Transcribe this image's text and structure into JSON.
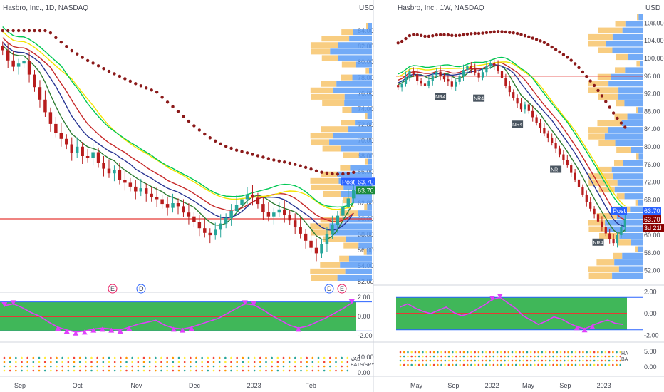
{
  "chart_data": [
    {
      "type": "candlestick",
      "title": "Hasbro, Inc., 1D, NASDAQ",
      "currency": "USD",
      "ylim": [
        52,
        85
      ],
      "y_ticks": [
        "84.00",
        "82.00",
        "80.00",
        "78.00",
        "76.00",
        "74.00",
        "72.00",
        "70.00",
        "68.00",
        "66.00",
        "64.00",
        "62.00",
        "60.00",
        "58.00",
        "56.00",
        "54.00",
        "52.00"
      ],
      "x_ticks": [
        "Sep",
        "Oct",
        "Nov",
        "Dec",
        "2023",
        "Feb"
      ],
      "horizontal_line": 60.0,
      "last_price": "63.70",
      "post_label": "Post",
      "post_price": "63.70",
      "event_markers": [
        "E",
        "D",
        "D",
        "E"
      ],
      "closes": [
        81.5,
        80.2,
        79.4,
        79.8,
        80.1,
        78.4,
        76.8,
        75.2,
        73.6,
        72.1,
        71.0,
        70.2,
        69.5,
        68.4,
        69.2,
        68.0,
        67.8,
        68.5,
        67.1,
        66.4,
        65.8,
        66.2,
        65.0,
        64.6,
        64.1,
        63.5,
        63.9,
        63.2,
        62.8,
        62.5,
        61.9,
        61.4,
        62.0,
        61.6,
        60.8,
        60.3,
        59.6,
        58.8,
        58.2,
        57.9,
        58.6,
        59.4,
        60.1,
        61.0,
        61.8,
        62.5,
        63.1,
        62.7,
        61.9,
        60.9,
        60.3,
        60.8,
        61.2,
        60.5,
        59.8,
        59.0,
        58.1,
        57.2,
        56.3,
        55.6,
        56.8,
        58.0,
        59.2,
        60.4,
        61.5,
        62.6,
        63.7
      ],
      "indicator": {
        "y_ticks": [
          "2.00",
          "0.00",
          "-2.00"
        ],
        "osc": [
          1.1,
          1.3,
          0.9,
          0.4,
          0.0,
          -0.6,
          -1.1,
          -1.4,
          -1.6,
          -1.5,
          -1.3,
          -1.2,
          -1.3,
          -1.4,
          -1.1,
          -0.8,
          -0.6,
          -0.4,
          -0.9,
          -1.2,
          -1.3,
          -1.1,
          -0.8,
          -0.5,
          -0.2,
          0.3,
          0.8,
          1.3,
          1.2,
          0.7,
          0.1,
          -0.4,
          -0.9,
          -1.2,
          -1.0,
          -0.6,
          -0.2,
          0.3,
          0.8,
          1.4
        ]
      },
      "subpanel": {
        "y_ticks": [
          "10.00",
          "0.00"
        ],
        "labels": [
          "VAS",
          "BATS/SPY"
        ]
      }
    },
    {
      "type": "candlestick",
      "title": "Hasbro, Inc., 1W, NASDAQ",
      "currency": "USD",
      "ylim": [
        50,
        110
      ],
      "y_ticks": [
        "108.00",
        "104.00",
        "100.00",
        "96.00",
        "92.00",
        "88.00",
        "84.00",
        "80.00",
        "76.00",
        "72.00",
        "68.00",
        "64.00",
        "60.00",
        "56.00",
        "52.00"
      ],
      "x_ticks": [
        "May",
        "Sep",
        "2022",
        "May",
        "Sep",
        "2023"
      ],
      "horizontal_line": 96.0,
      "last_price": "63.70",
      "post_label": "Post",
      "post_price": "63.70",
      "countdown": "3d 21h",
      "nr_labels": [
        "NR4",
        "NR4",
        "NR4",
        "NR",
        "NR4"
      ],
      "closes": [
        93.5,
        94.2,
        95.8,
        97.1,
        96.4,
        95.0,
        94.3,
        93.8,
        94.9,
        96.2,
        97.0,
        96.1,
        95.3,
        94.8,
        93.6,
        94.7,
        96.0,
        97.4,
        98.3,
        97.6,
        96.8,
        95.7,
        96.9,
        98.2,
        99.0,
        98.4,
        97.1,
        95.6,
        93.8,
        92.4,
        91.0,
        89.8,
        88.5,
        89.6,
        88.1,
        86.7,
        85.4,
        84.2,
        83.0,
        82.1,
        80.9,
        79.6,
        78.3,
        77.0,
        75.8,
        74.1,
        72.6,
        70.9,
        69.2,
        67.5,
        66.0,
        64.8,
        63.1,
        61.9,
        60.4,
        59.1,
        58.2,
        60.0,
        61.8,
        63.7
      ],
      "indicator": {
        "y_ticks": [
          "2.00",
          "0.00",
          "-2.00"
        ],
        "osc": [
          0.6,
          0.9,
          0.5,
          0.2,
          0.0,
          0.3,
          0.6,
          0.1,
          -0.2,
          0.0,
          0.4,
          0.8,
          1.3,
          1.5,
          1.0,
          0.5,
          -0.2,
          -0.6,
          -1.0,
          -0.7,
          -0.3,
          -0.5,
          -0.9,
          -1.2,
          -1.4,
          -1.1,
          -0.8,
          -0.6,
          -0.9,
          -1.0
        ]
      },
      "subpanel": {
        "y_ticks": [
          "5.00",
          "0.00"
        ],
        "labels": [
          "HA",
          "BA"
        ]
      }
    }
  ]
}
